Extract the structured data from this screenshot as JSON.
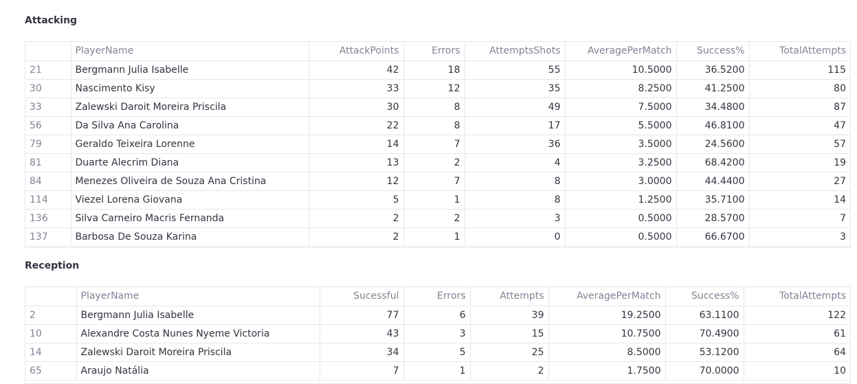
{
  "attacking": {
    "title": "Attacking",
    "columns": [
      "",
      "PlayerName",
      "AttackPoints",
      "Errors",
      "AttemptsShots",
      "AveragePerMatch",
      "Success%",
      "TotalAttempts"
    ],
    "rows": [
      [
        "21",
        "Bergmann Julia Isabelle",
        "42",
        "18",
        "55",
        "10.5000",
        "36.5200",
        "115"
      ],
      [
        "30",
        "Nascimento Kisy",
        "33",
        "12",
        "35",
        "8.2500",
        "41.2500",
        "80"
      ],
      [
        "33",
        "Zalewski Daroit Moreira Priscila",
        "30",
        "8",
        "49",
        "7.5000",
        "34.4800",
        "87"
      ],
      [
        "56",
        "Da Silva Ana Carolina",
        "22",
        "8",
        "17",
        "5.5000",
        "46.8100",
        "47"
      ],
      [
        "79",
        "Geraldo Teixeira Lorenne",
        "14",
        "7",
        "36",
        "3.5000",
        "24.5600",
        "57"
      ],
      [
        "81",
        "Duarte Alecrim Diana",
        "13",
        "2",
        "4",
        "3.2500",
        "68.4200",
        "19"
      ],
      [
        "84",
        "Menezes Oliveira de Souza Ana Cristina",
        "12",
        "7",
        "8",
        "3.0000",
        "44.4400",
        "27"
      ],
      [
        "114",
        "Viezel Lorena Giovana",
        "5",
        "1",
        "8",
        "1.2500",
        "35.7100",
        "14"
      ],
      [
        "136",
        "Silva Carneiro Macris Fernanda",
        "2",
        "2",
        "3",
        "0.5000",
        "28.5700",
        "7"
      ],
      [
        "137",
        "Barbosa De Souza Karina",
        "2",
        "1",
        "0",
        "0.5000",
        "66.6700",
        "3"
      ]
    ]
  },
  "reception": {
    "title": "Reception",
    "columns": [
      "",
      "PlayerName",
      "Sucessful",
      "Errors",
      "Attempts",
      "AveragePerMatch",
      "Success%",
      "TotalAttempts"
    ],
    "rows": [
      [
        "2",
        "Bergmann Julia Isabelle",
        "77",
        "6",
        "39",
        "19.2500",
        "63.1100",
        "122"
      ],
      [
        "10",
        "Alexandre Costa Nunes Nyeme Victoria",
        "43",
        "3",
        "15",
        "10.7500",
        "70.4900",
        "61"
      ],
      [
        "14",
        "Zalewski Daroit Moreira Priscila",
        "34",
        "5",
        "25",
        "8.5000",
        "53.1200",
        "64"
      ],
      [
        "65",
        "Araujo Natália",
        "7",
        "1",
        "2",
        "1.7500",
        "70.0000",
        "10"
      ]
    ]
  }
}
